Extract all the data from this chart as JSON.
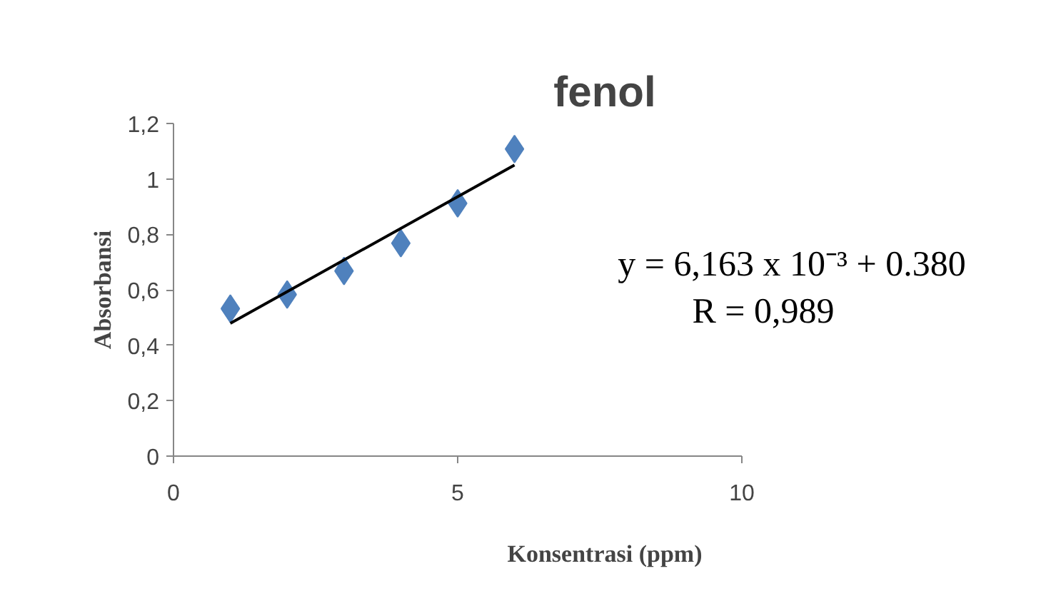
{
  "chart_data": {
    "type": "scatter",
    "title": "fenol",
    "xlabel": "Konsentrasi (ppm)",
    "ylabel": "Absorbansi",
    "x": [
      1,
      2,
      3,
      4,
      5,
      6
    ],
    "series": [
      {
        "color": "#4f81bd",
        "marker": "diamond",
        "values": [
          0.532,
          0.583,
          0.668,
          0.768,
          0.912,
          1.108
        ]
      },
      {
        "type": "line",
        "color": "#000000",
        "x": [
          1,
          6
        ],
        "values": [
          0.479,
          1.05
        ],
        "line_style": "solid"
      }
    ],
    "xlim": [
      0,
      10
    ],
    "xticks": [
      0,
      5,
      10
    ],
    "ylim": [
      0,
      1.2
    ],
    "yticks": [
      0,
      {
        "value": 0.2,
        "label": "0,2"
      },
      {
        "value": 0.4,
        "label": "0,4"
      },
      {
        "value": 0.6,
        "label": "0,6"
      },
      {
        "value": 0.8,
        "label": "0,8"
      },
      1,
      {
        "value": 1.2,
        "label": "1,2"
      }
    ],
    "grid": false,
    "annotations": [
      "y = 6,163 x 10⁻³ + 0.380",
      "R = 0,989"
    ]
  }
}
